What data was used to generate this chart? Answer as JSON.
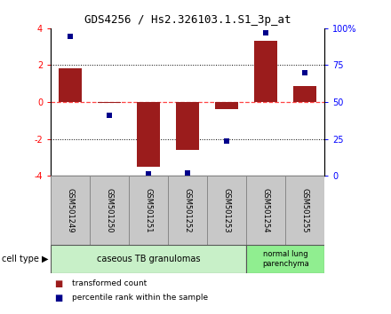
{
  "title": "GDS4256 / Hs2.326103.1.S1_3p_at",
  "samples": [
    "GSM501249",
    "GSM501250",
    "GSM501251",
    "GSM501252",
    "GSM501253",
    "GSM501254",
    "GSM501255"
  ],
  "bar_values": [
    1.85,
    -0.05,
    -3.5,
    -2.6,
    -0.4,
    3.3,
    0.85
  ],
  "dot_values": [
    3.55,
    -0.7,
    -3.9,
    -3.85,
    -2.1,
    3.75,
    1.6
  ],
  "ylim": [
    -4,
    4
  ],
  "yticks_left": [
    -4,
    -2,
    0,
    2,
    4
  ],
  "yticks_right_positions": [
    -4,
    -2,
    0,
    2,
    4
  ],
  "yticks_right_labels": [
    "0",
    "25",
    "50",
    "75",
    "100%"
  ],
  "bar_color": "#9B1C1C",
  "dot_color": "#00008B",
  "zero_line_color": "#FF4444",
  "grid_color": "#000000",
  "group1_label": "caseous TB granulomas",
  "group1_color": "#C8F0C8",
  "group1_count": 5,
  "group2_label": "normal lung\nparenchyma",
  "group2_color": "#90EE90",
  "group2_count": 2,
  "legend_bar_label": "transformed count",
  "legend_dot_label": "percentile rank within the sample",
  "cell_type_label": "cell type",
  "sample_box_color": "#C8C8C8"
}
